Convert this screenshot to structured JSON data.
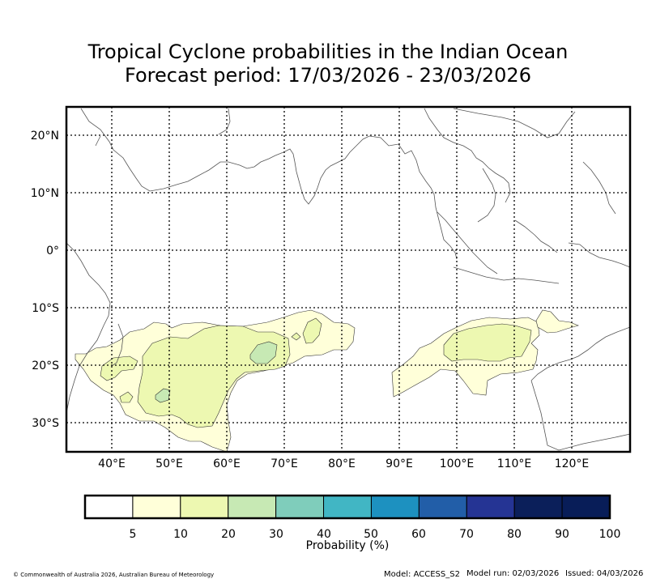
{
  "title": {
    "line1": "Tropical Cyclone probabilities in the Indian Ocean",
    "line2": "Forecast period: 17/03/2026 - 23/03/2026"
  },
  "map": {
    "lon_ticks": [
      "40°E",
      "50°E",
      "60°E",
      "70°E",
      "80°E",
      "90°E",
      "100°E",
      "110°E",
      "120°E"
    ],
    "lat_ticks": [
      "20°N",
      "10°N",
      "0°",
      "10°S",
      "20°S",
      "30°S"
    ],
    "colors": {
      "land_outline": "#555555",
      "grid": "#000000",
      "frame": "#000000"
    }
  },
  "colorbar": {
    "label": "Probability (%)",
    "ticks": [
      "5",
      "10",
      "20",
      "30",
      "40",
      "50",
      "60",
      "70",
      "80",
      "90",
      "100"
    ],
    "colors": [
      "#ffffff",
      "#ffffd9",
      "#edf8b1",
      "#c7e9b4",
      "#7fcdbb",
      "#41b6c4",
      "#1d91c0",
      "#225ea8",
      "#253494",
      "#0b1f5a",
      "#081d58"
    ]
  },
  "footer": {
    "copyright": "© Commonwealth of Australia 2026, Australian Bureau of Meteorology",
    "model": "Model: ACCESS_S2",
    "model_run": "Model run: 02/03/2026",
    "issued": "Issued: 04/03/2026"
  }
}
